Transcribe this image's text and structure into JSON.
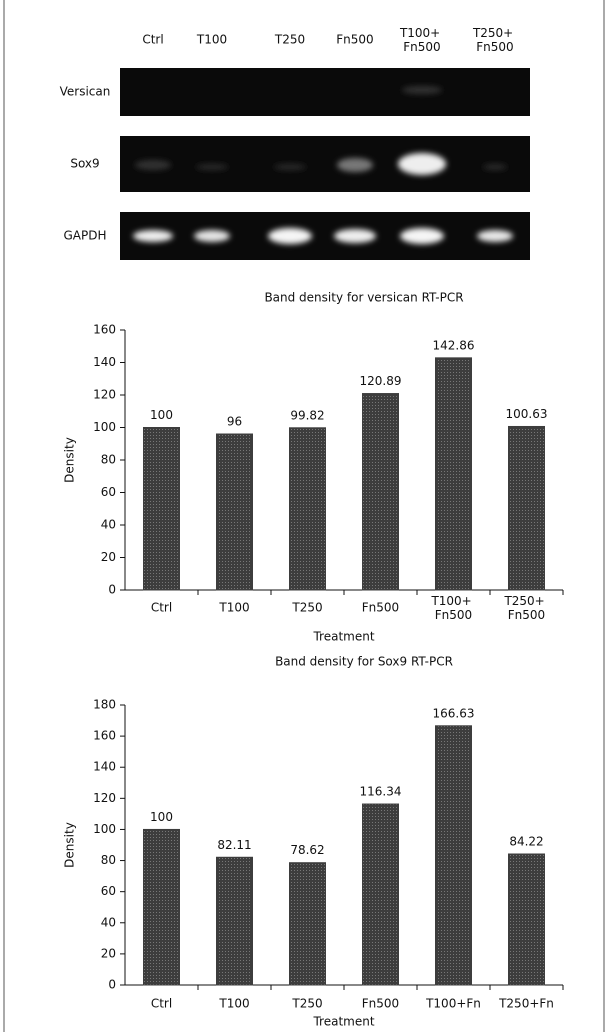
{
  "gel": {
    "lanes": [
      "Ctrl",
      "T100",
      "T250",
      "Fn500",
      "T100+ Fn500",
      "T250+ Fn500"
    ],
    "rows": [
      "Versican",
      "Sox9",
      "GAPDH"
    ]
  },
  "chart_data": [
    {
      "type": "bar",
      "title": "Band density for versican RT-PCR",
      "x_label": "Treatment",
      "y_label": "Density",
      "categories": [
        "Ctrl",
        "T100",
        "T250",
        "Fn500",
        "T100+ Fn500",
        "T250+ Fn500"
      ],
      "values": [
        100,
        96,
        99.82,
        120.89,
        142.86,
        100.63
      ],
      "value_labels": [
        "100",
        "96",
        "99.82",
        "120.89",
        "142.86",
        "100.63"
      ],
      "color": "#3d3d3d",
      "ylim": [
        0,
        160
      ],
      "yticks": [
        0,
        20,
        40,
        60,
        80,
        100,
        120,
        140,
        160
      ]
    },
    {
      "type": "bar",
      "title": "Band density for Sox9 RT-PCR",
      "x_label": "Treatment",
      "y_label": "Density",
      "categories": [
        "Ctrl",
        "T100",
        "T250",
        "Fn500",
        "T100+Fn",
        "T250+Fn"
      ],
      "values": [
        100,
        82.11,
        78.62,
        116.34,
        166.63,
        84.22
      ],
      "value_labels": [
        "100",
        "82.11",
        "78.62",
        "116.34",
        "166.63",
        "84.22"
      ],
      "color": "#3d3d3d",
      "ylim": [
        0,
        180
      ],
      "yticks": [
        0,
        20,
        40,
        60,
        80,
        100,
        120,
        140,
        160,
        180
      ]
    }
  ]
}
